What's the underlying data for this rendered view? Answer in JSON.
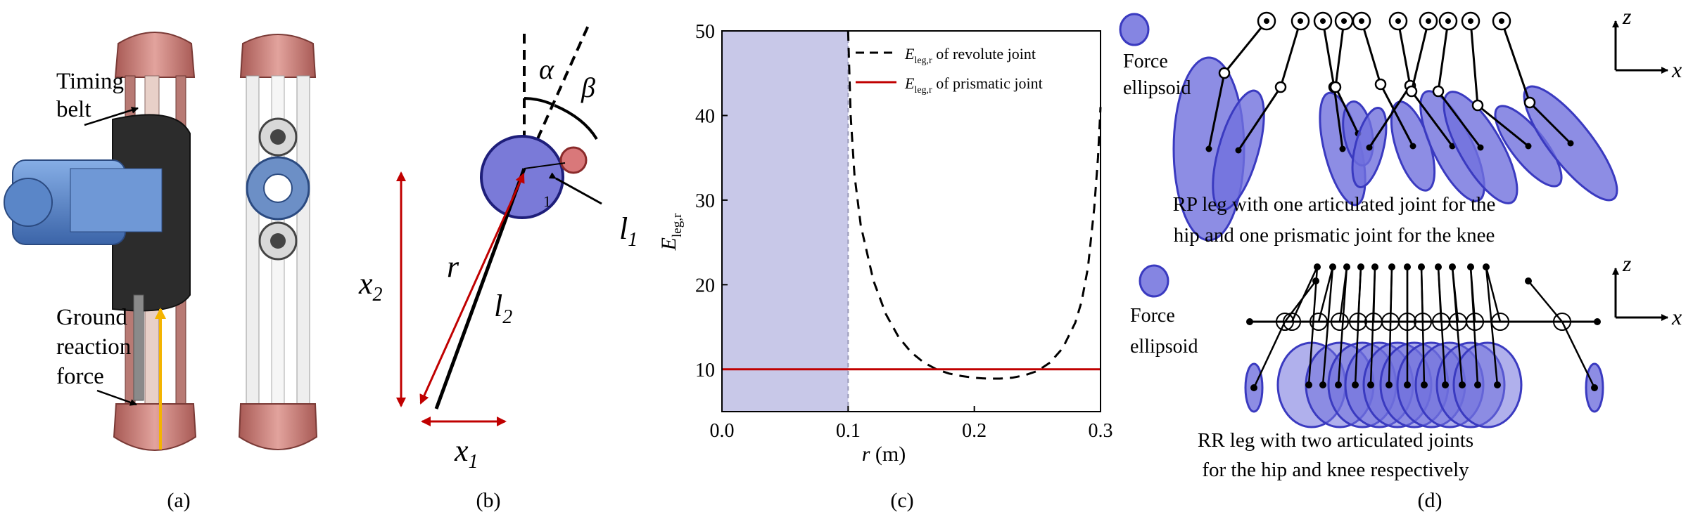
{
  "figure": {
    "panel_labels": [
      "(a)",
      "(b)",
      "(c)",
      "(d)"
    ]
  },
  "panel_a": {
    "annotation_timing_1": "Timing",
    "annotation_timing_2": "belt",
    "annotation_grf_1": "Ground",
    "annotation_grf_2": "reaction",
    "annotation_grf_3": "force",
    "colors": {
      "housing": "#c97a73",
      "motor": "#4f7fc0",
      "arrow": "#f4b400"
    }
  },
  "panel_b": {
    "alpha": "α",
    "beta": "β",
    "r": "r",
    "x2": "x",
    "x2_sub": "2",
    "x1": "x",
    "x1_sub": "1",
    "l1": "l",
    "l1_sub": "1",
    "l2": "l",
    "l2_sub": "2",
    "one": "1",
    "colors": {
      "circle": "#7a7ad8",
      "knee": "#d9787a",
      "arrow": "#c00000"
    }
  },
  "chart_data": {
    "type": "line",
    "xlabel": "r (m)",
    "xlabel_var": "r",
    "xlabel_unit": "(m)",
    "ylabel_main": "E",
    "ylabel_sub": "leg,r",
    "xlim": [
      0.0,
      0.3
    ],
    "ylim": [
      5,
      50
    ],
    "x_ticks": [
      "0.0",
      "0.1",
      "0.2",
      "0.3"
    ],
    "y_ticks": [
      "10",
      "20",
      "30",
      "40",
      "50"
    ],
    "shaded_region": {
      "x_start": 0.0,
      "x_end": 0.1,
      "color": "#c8c8e8"
    },
    "legend_position": "top-right",
    "series": [
      {
        "name": "E_leg,r of revolute joint",
        "legend_main": "E",
        "legend_sub": "leg,r",
        "legend_rest": " of revolute joint",
        "style": "dashed",
        "color": "#000000",
        "x": [
          0.1,
          0.102,
          0.105,
          0.11,
          0.12,
          0.13,
          0.14,
          0.15,
          0.16,
          0.17,
          0.18,
          0.19,
          0.2,
          0.21,
          0.22,
          0.23,
          0.24,
          0.25,
          0.26,
          0.27,
          0.28,
          0.285,
          0.29,
          0.295,
          0.298,
          0.3
        ],
        "y": [
          50,
          40,
          33,
          27,
          20.5,
          16.5,
          13.8,
          12,
          10.8,
          10,
          9.5,
          9.2,
          9.0,
          8.9,
          8.9,
          9.0,
          9.3,
          9.8,
          10.8,
          12.5,
          15.5,
          18,
          22,
          29,
          35,
          41
        ]
      },
      {
        "name": "E_leg,r of prismatic joint",
        "legend_main": "E",
        "legend_sub": "leg,r",
        "legend_rest": " of prismatic joint",
        "style": "solid",
        "color": "#c00000",
        "x": [
          0.0,
          0.3
        ],
        "y": [
          10,
          10
        ]
      }
    ]
  },
  "panel_d": {
    "top_legend_1": "Force",
    "top_legend_2": "ellipsoid",
    "bottom_legend_1": "Force",
    "bottom_legend_2": "ellipsoid",
    "rp_caption_1": "RP leg with one articulated joint for the",
    "rp_caption_2": "hip and one prismatic joint for the knee",
    "rr_caption_1": "RR leg with two articulated joints",
    "rr_caption_2": "for the hip and knee respectively",
    "axis_z": "z",
    "axis_x": "x",
    "colors": {
      "ellipse_fill": "#7070dd",
      "ellipse_stroke": "#3a3ac0"
    }
  }
}
